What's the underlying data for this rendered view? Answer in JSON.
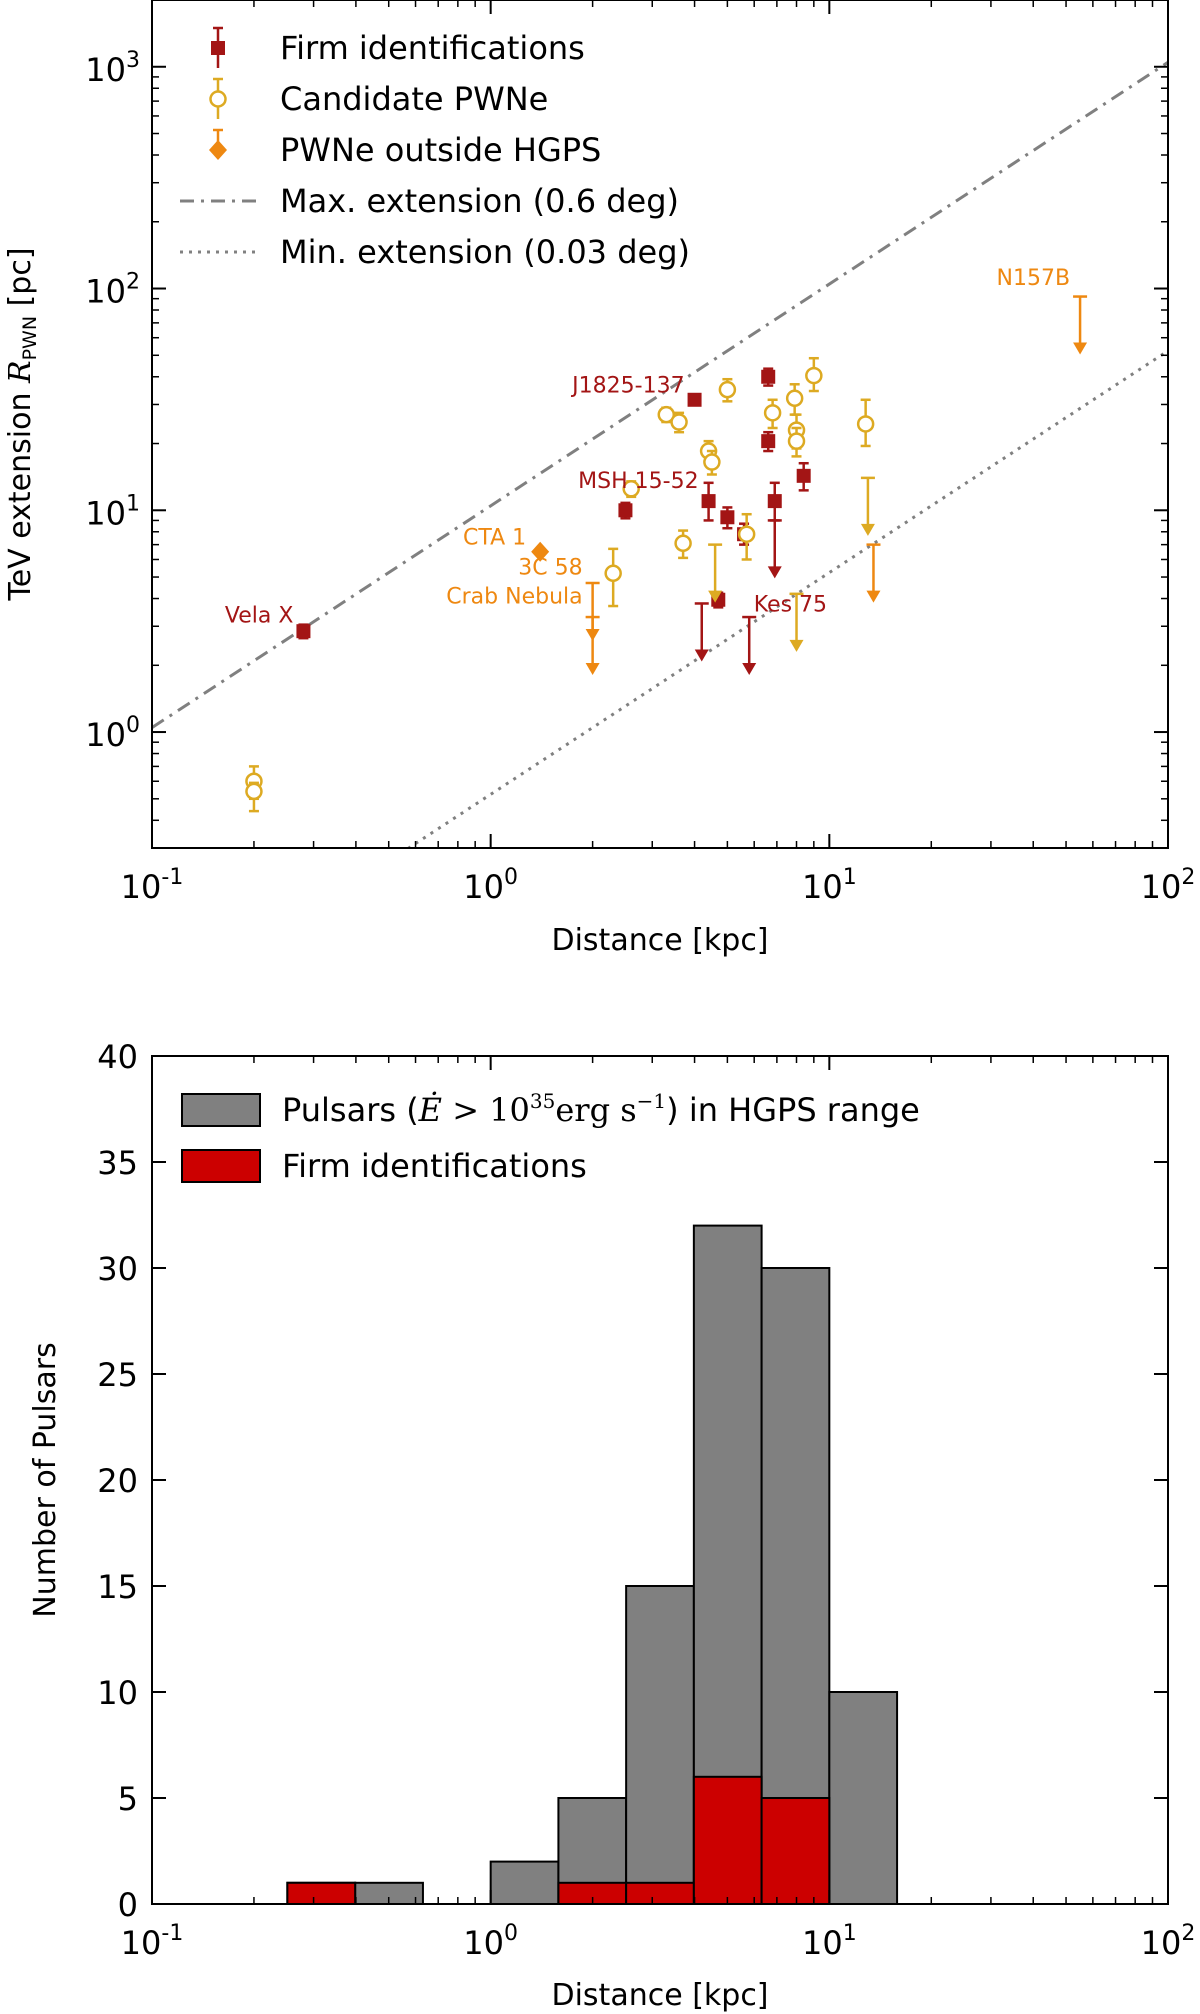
{
  "chart_data": [
    {
      "type": "scatter",
      "xscale": "log",
      "yscale": "log",
      "xlim": [
        0.1,
        100
      ],
      "ylim": [
        0.3,
        2000
      ],
      "xlabel": "Distance [kpc]",
      "ylabel": "TeV extension R_PWN [pc]",
      "ylabel_main": "TeV extension ",
      "ylabel_sym": "R",
      "ylabel_sub": "PWN",
      "ylabel_unit": " [pc]",
      "x_ticks": [
        {
          "value": 0.1,
          "mant": "10",
          "exp": "-1"
        },
        {
          "value": 1,
          "mant": "10",
          "exp": "0"
        },
        {
          "value": 10,
          "mant": "10",
          "exp": "1"
        },
        {
          "value": 100,
          "mant": "10",
          "exp": "2"
        }
      ],
      "y_ticks": [
        {
          "value": 1,
          "mant": "10",
          "exp": "0"
        },
        {
          "value": 10,
          "mant": "10",
          "exp": "1"
        },
        {
          "value": 100,
          "mant": "10",
          "exp": "2"
        },
        {
          "value": 1000,
          "mant": "10",
          "exp": "3"
        }
      ],
      "legend": {
        "position": "top-left",
        "entries": [
          {
            "label": "Firm identifications",
            "marker": "square",
            "color": "#a31515"
          },
          {
            "label": "Candidate PWNe",
            "marker": "circle-open",
            "color": "#ddaa22"
          },
          {
            "label": "PWNe outside HGPS",
            "marker": "diamond",
            "color": "#ee8811"
          },
          {
            "label": "Max. extension (0.6 deg)",
            "marker": "dashdot-line",
            "color": "#808080"
          },
          {
            "label": "Min. extension (0.03 deg)",
            "marker": "dotted-line",
            "color": "#808080"
          }
        ]
      },
      "reference_lines": [
        {
          "name": "Max. extension (0.6 deg)",
          "angle_deg": 0.6,
          "style": "dashdot",
          "color": "#808080"
        },
        {
          "name": "Min. extension (0.03 deg)",
          "angle_deg": 0.03,
          "style": "dotted",
          "color": "#808080"
        }
      ],
      "series": [
        {
          "name": "Firm identifications",
          "color": "#a31515",
          "points": [
            {
              "x": 0.28,
              "y": 2.85,
              "yerr_lo": 0.2,
              "yerr_hi": 0.2
            },
            {
              "x": 2.5,
              "y": 10.0,
              "yerr_lo": 0.8,
              "yerr_hi": 0.8
            },
            {
              "x": 4.0,
              "y": 31.5,
              "yerr_lo": 1.5,
              "yerr_hi": 1.5
            },
            {
              "x": 4.4,
              "y": 11.0,
              "yerr_lo": 2.0,
              "yerr_hi": 2.3
            },
            {
              "x": 4.7,
              "y": 3.95,
              "yerr_lo": 0.3,
              "yerr_hi": 0.3
            },
            {
              "x": 5.0,
              "y": 9.3,
              "yerr_lo": 1.0,
              "yerr_hi": 1.0
            },
            {
              "x": 5.6,
              "y": 7.8,
              "yerr_lo": 0.8,
              "yerr_hi": 0.9
            },
            {
              "x": 6.6,
              "y": 40.0,
              "yerr_lo": 3.5,
              "yerr_hi": 3.5
            },
            {
              "x": 6.6,
              "y": 20.5,
              "yerr_lo": 2.0,
              "yerr_hi": 2.0
            },
            {
              "x": 6.9,
              "y": 11.0,
              "yerr_lo": 2.0,
              "yerr_hi": 2.3
            },
            {
              "x": 8.4,
              "y": 14.3,
              "yerr_lo": 2.0,
              "yerr_hi": 2.0
            }
          ],
          "upper_limits": [
            {
              "x": 4.2,
              "y": 3.8
            },
            {
              "x": 5.8,
              "y": 3.3
            },
            {
              "x": 6.9,
              "y": 9.0
            }
          ]
        },
        {
          "name": "Candidate PWNe",
          "color": "#ddaa22",
          "points": [
            {
              "x": 0.2,
              "y": 0.6,
              "yerr_lo": 0.1,
              "yerr_hi": 0.1
            },
            {
              "x": 0.2,
              "y": 0.54,
              "yerr_lo": 0.1,
              "yerr_hi": 0.05
            },
            {
              "x": 2.3,
              "y": 5.2,
              "yerr_lo": 1.5,
              "yerr_hi": 1.5
            },
            {
              "x": 2.6,
              "y": 12.5,
              "yerr_lo": 1.0,
              "yerr_hi": 1.0
            },
            {
              "x": 3.3,
              "y": 27.0,
              "yerr_lo": 2.0,
              "yerr_hi": 2.0
            },
            {
              "x": 3.6,
              "y": 25.0,
              "yerr_lo": 2.5,
              "yerr_hi": 2.5
            },
            {
              "x": 3.7,
              "y": 7.1,
              "yerr_lo": 1.0,
              "yerr_hi": 1.0
            },
            {
              "x": 4.4,
              "y": 18.5,
              "yerr_lo": 2.0,
              "yerr_hi": 2.0
            },
            {
              "x": 4.5,
              "y": 16.5,
              "yerr_lo": 2.0,
              "yerr_hi": 2.0
            },
            {
              "x": 5.0,
              "y": 35.0,
              "yerr_lo": 4.0,
              "yerr_hi": 4.0
            },
            {
              "x": 5.7,
              "y": 7.8,
              "yerr_lo": 1.8,
              "yerr_hi": 1.8
            },
            {
              "x": 6.8,
              "y": 27.5,
              "yerr_lo": 4.0,
              "yerr_hi": 4.0
            },
            {
              "x": 7.9,
              "y": 32.0,
              "yerr_lo": 5.0,
              "yerr_hi": 5.0
            },
            {
              "x": 8.0,
              "y": 23.0,
              "yerr_lo": 4.0,
              "yerr_hi": 4.0
            },
            {
              "x": 8.0,
              "y": 20.5,
              "yerr_lo": 3.0,
              "yerr_hi": 3.0
            },
            {
              "x": 9.0,
              "y": 40.5,
              "yerr_lo": 6.0,
              "yerr_hi": 8.0
            },
            {
              "x": 12.8,
              "y": 24.5,
              "yerr_lo": 5.0,
              "yerr_hi": 7.0
            }
          ],
          "upper_limits": [
            {
              "x": 4.6,
              "y": 7.0
            },
            {
              "x": 8.0,
              "y": 4.2
            },
            {
              "x": 13.0,
              "y": 14.0
            }
          ]
        },
        {
          "name": "PWNe outside HGPS",
          "color": "#ee8811",
          "points": [
            {
              "x": 1.4,
              "y": 6.5,
              "yerr_lo": 0,
              "yerr_hi": 0
            }
          ],
          "upper_limits": [
            {
              "x": 2.0,
              "y": 4.7
            },
            {
              "x": 2.0,
              "y": 3.3
            },
            {
              "x": 13.5,
              "y": 7.0
            },
            {
              "x": 55.0,
              "y": 92.0
            }
          ]
        }
      ],
      "annotations": [
        {
          "text": "Vela X",
          "color": "#a31515",
          "x": 0.28,
          "y": 2.85,
          "anchor": "left",
          "dx": -0.28,
          "dy": 0.04
        },
        {
          "text": "J1825-137",
          "color": "#a31515",
          "x": 4.0,
          "y": 31.5,
          "anchor": "left",
          "dx": -0.35,
          "dy": 0.02
        },
        {
          "text": "MSH 15-52",
          "color": "#a31515",
          "x": 4.4,
          "y": 11.0,
          "anchor": "left",
          "dx": -0.3,
          "dy": 0.08
        },
        {
          "text": "Kes 75",
          "color": "#a31515",
          "x": 5.9,
          "y": 3.5,
          "anchor": "start",
          "dx": 0.0,
          "dy": 0.0
        },
        {
          "text": "CTA 1",
          "color": "#ee8811",
          "x": 1.4,
          "y": 6.5,
          "anchor": "left",
          "dx": -0.05,
          "dy": 0.05
        },
        {
          "text": "3C 58",
          "color": "#ee8811",
          "x": 2.0,
          "y": 4.7,
          "anchor": "left",
          "dx": -0.03,
          "dy": 0.07
        },
        {
          "text": "Crab Nebula",
          "color": "#ee8811",
          "x": 2.0,
          "y": 3.3,
          "anchor": "left",
          "dx": -0.03,
          "dy": 0.08
        },
        {
          "text": "N157B",
          "color": "#ee8811",
          "x": 55.0,
          "y": 92.0,
          "anchor": "left",
          "dx": -0.05,
          "dy": 0.05
        }
      ]
    },
    {
      "type": "bar",
      "subtype": "histogram",
      "xscale": "log",
      "xlim": [
        0.1,
        100
      ],
      "ylim": [
        0,
        40
      ],
      "xlabel": "Distance [kpc]",
      "ylabel": "Number of Pulsars",
      "x_ticks": [
        {
          "value": 0.1,
          "mant": "10",
          "exp": "-1"
        },
        {
          "value": 1,
          "mant": "10",
          "exp": "0"
        },
        {
          "value": 10,
          "mant": "10",
          "exp": "1"
        },
        {
          "value": 100,
          "mant": "10",
          "exp": "2"
        }
      ],
      "y_ticks": [
        0,
        5,
        10,
        15,
        20,
        25,
        30,
        35,
        40
      ],
      "bin_edges": [
        0.251,
        0.398,
        0.631,
        1.0,
        1.585,
        2.512,
        3.981,
        6.31,
        10.0,
        15.85
      ],
      "legend": {
        "position": "top-left",
        "entries": [
          {
            "label_pre": "Pulsars (",
            "label_math_sym": "Ė",
            "label_math_rel": " > ",
            "label_math_base": "10",
            "label_math_exp": "35",
            "label_math_unit": "erg s",
            "label_math_unit_exp": "−1",
            "label_post": ") in HGPS range",
            "color": "#808080"
          },
          {
            "label": "Firm identifications",
            "color": "#cc0000"
          }
        ]
      },
      "series": [
        {
          "name": "Pulsars in HGPS range",
          "color": "#808080",
          "values": [
            1,
            1,
            0,
            2,
            5,
            15,
            32,
            30,
            10
          ]
        },
        {
          "name": "Firm identifications",
          "color": "#cc0000",
          "values": [
            1,
            0,
            0,
            0,
            1,
            1,
            6,
            5,
            0
          ]
        }
      ]
    }
  ]
}
